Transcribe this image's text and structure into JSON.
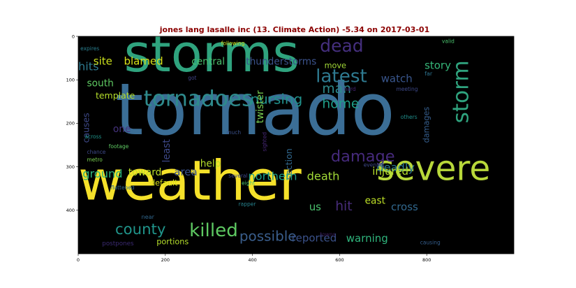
{
  "chart_data": {
    "type": "wordcloud",
    "title": "jones lang lasalle inc (13. Climate Action) -5.34 on 2017-03-01",
    "xlabel": "",
    "ylabel": "",
    "xlim": [
      0,
      1000
    ],
    "ylim": [
      500,
      0
    ],
    "x_ticks": [
      0,
      200,
      400,
      600,
      800
    ],
    "y_ticks": [
      0,
      100,
      200,
      300,
      400
    ],
    "background": "#000000",
    "grid": false,
    "words": [
      {
        "text": "tornado",
        "x": 85,
        "y": 225,
        "size": 165,
        "color": "#3b6e96"
      },
      {
        "text": "storms",
        "x": 105,
        "y": 80,
        "size": 118,
        "color": "#2fa37e"
      },
      {
        "text": "weather",
        "x": 0,
        "y": 375,
        "size": 125,
        "color": "#f5e12a"
      },
      {
        "text": "severe",
        "x": 685,
        "y": 330,
        "size": 78,
        "color": "#b8d83a"
      },
      {
        "text": "tornadoes",
        "x": 150,
        "y": 160,
        "size": 50,
        "color": "#2e8a8c"
      },
      {
        "text": "latest",
        "x": 545,
        "y": 105,
        "size": 42,
        "color": "#2e7a90"
      },
      {
        "text": "storm",
        "x": 895,
        "y": 200,
        "size": 50,
        "color": "#2fa37e",
        "rotate": true
      },
      {
        "text": "dead",
        "x": 555,
        "y": 35,
        "size": 40,
        "color": "#452f7e"
      },
      {
        "text": "damage",
        "x": 580,
        "y": 288,
        "size": 36,
        "color": "#462a7c"
      },
      {
        "text": "killed",
        "x": 255,
        "y": 460,
        "size": 42,
        "color": "#5ec962"
      },
      {
        "text": "county",
        "x": 85,
        "y": 455,
        "size": 34,
        "color": "#20958b"
      },
      {
        "text": "nursing",
        "x": 395,
        "y": 155,
        "size": 32,
        "color": "#21918c"
      },
      {
        "text": "home",
        "x": 560,
        "y": 165,
        "size": 30,
        "color": "#1f9e89"
      },
      {
        "text": "man",
        "x": 560,
        "y": 130,
        "size": 30,
        "color": "#2e8a8c"
      },
      {
        "text": "possible",
        "x": 370,
        "y": 470,
        "size": 32,
        "color": "#3a5e8c"
      },
      {
        "text": "hits",
        "x": 0,
        "y": 78,
        "size": 26,
        "color": "#2e7a90"
      },
      {
        "text": "site",
        "x": 35,
        "y": 65,
        "size": 24,
        "color": "#cde11d"
      },
      {
        "text": "blamed",
        "x": 105,
        "y": 65,
        "size": 24,
        "color": "#d8e219"
      },
      {
        "text": "central",
        "x": 260,
        "y": 65,
        "size": 22,
        "color": "#4ac16d"
      },
      {
        "text": "thunderstorms",
        "x": 385,
        "y": 65,
        "size": 22,
        "color": "#3b528b"
      },
      {
        "text": "story",
        "x": 795,
        "y": 75,
        "size": 24,
        "color": "#35b779"
      },
      {
        "text": "watch",
        "x": 695,
        "y": 105,
        "size": 24,
        "color": "#39568c"
      },
      {
        "text": "south",
        "x": 20,
        "y": 115,
        "size": 22,
        "color": "#5ec962"
      },
      {
        "text": "template",
        "x": 40,
        "y": 143,
        "size": 20,
        "color": "#b5de2b"
      },
      {
        "text": "twister",
        "x": 425,
        "y": 200,
        "size": 22,
        "color": "#7ad151",
        "rotate": true
      },
      {
        "text": "damages",
        "x": 805,
        "y": 245,
        "size": 18,
        "color": "#355e8d",
        "rotate": true
      },
      {
        "text": "causes",
        "x": 25,
        "y": 245,
        "size": 20,
        "color": "#3e4989",
        "rotate": true
      },
      {
        "text": "one",
        "x": 80,
        "y": 220,
        "size": 22,
        "color": "#46337e"
      },
      {
        "text": "least",
        "x": 210,
        "y": 290,
        "size": 22,
        "color": "#3e4989",
        "rotate": true
      },
      {
        "text": "help",
        "x": 280,
        "y": 300,
        "size": 22,
        "color": "#b5de2b"
      },
      {
        "text": "section",
        "x": 490,
        "y": 330,
        "size": 20,
        "color": "#31688e",
        "rotate": true
      },
      {
        "text": "deadly",
        "x": 685,
        "y": 310,
        "size": 26,
        "color": "#2a788e"
      },
      {
        "text": "ground",
        "x": 10,
        "y": 325,
        "size": 26,
        "color": "#2fb47c"
      },
      {
        "text": "toward",
        "x": 115,
        "y": 320,
        "size": 22,
        "color": "#bddf26"
      },
      {
        "text": "area",
        "x": 220,
        "y": 320,
        "size": 24,
        "color": "#3b528b"
      },
      {
        "text": "northern",
        "x": 390,
        "y": 330,
        "size": 26,
        "color": "#1f9e89"
      },
      {
        "text": "death",
        "x": 525,
        "y": 330,
        "size": 26,
        "color": "#a2da37"
      },
      {
        "text": "injured",
        "x": 675,
        "y": 318,
        "size": 24,
        "color": "#b5de2b"
      },
      {
        "text": "default",
        "x": 165,
        "y": 343,
        "size": 18,
        "color": "#d8e219"
      },
      {
        "text": "us",
        "x": 530,
        "y": 400,
        "size": 24,
        "color": "#4ac16d"
      },
      {
        "text": "hit",
        "x": 590,
        "y": 400,
        "size": 30,
        "color": "#472c7a"
      },
      {
        "text": "east",
        "x": 658,
        "y": 385,
        "size": 22,
        "color": "#bddf26"
      },
      {
        "text": "cross",
        "x": 718,
        "y": 400,
        "size": 24,
        "color": "#31688e"
      },
      {
        "text": "reported",
        "x": 490,
        "y": 472,
        "size": 24,
        "color": "#3b528b"
      },
      {
        "text": "warning",
        "x": 615,
        "y": 473,
        "size": 24,
        "color": "#2fb47c"
      },
      {
        "text": "portions",
        "x": 180,
        "y": 478,
        "size": 18,
        "color": "#b5de2b"
      },
      {
        "text": "postpones",
        "x": 55,
        "y": 481,
        "size": 14,
        "color": "#3b2a72"
      },
      {
        "text": "causing",
        "x": 785,
        "y": 478,
        "size": 12,
        "color": "#355e8d"
      },
      {
        "text": "move",
        "x": 565,
        "y": 73,
        "size": 18,
        "color": "#a2da37"
      },
      {
        "text": "expires",
        "x": 5,
        "y": 32,
        "size": 12,
        "color": "#2a7e8e"
      },
      {
        "text": "following",
        "x": 328,
        "y": 20,
        "size": 12,
        "color": "#cde11d"
      },
      {
        "text": "valid",
        "x": 835,
        "y": 15,
        "size": 12,
        "color": "#4ac16d"
      },
      {
        "text": "far",
        "x": 795,
        "y": 90,
        "size": 13,
        "color": "#2c728e"
      },
      {
        "text": "got",
        "x": 252,
        "y": 100,
        "size": 12,
        "color": "#414487"
      },
      {
        "text": "hard",
        "x": 610,
        "y": 125,
        "size": 12,
        "color": "#482475"
      },
      {
        "text": "meeting",
        "x": 730,
        "y": 125,
        "size": 12,
        "color": "#3e4989"
      },
      {
        "text": "others",
        "x": 740,
        "y": 190,
        "size": 12,
        "color": "#20908d"
      },
      {
        "text": "across",
        "x": 15,
        "y": 235,
        "size": 12,
        "color": "#20958b"
      },
      {
        "text": "much",
        "x": 340,
        "y": 225,
        "size": 12,
        "color": "#3b528b"
      },
      {
        "text": "footage",
        "x": 70,
        "y": 257,
        "size": 12,
        "color": "#5ec962"
      },
      {
        "text": "chance",
        "x": 20,
        "y": 270,
        "size": 12,
        "color": "#3e4989"
      },
      {
        "text": "metro",
        "x": 20,
        "y": 288,
        "size": 12,
        "color": "#7ad151"
      },
      {
        "text": "several",
        "x": 345,
        "y": 325,
        "size": 12,
        "color": "#3e4989"
      },
      {
        "text": "sighted",
        "x": 432,
        "y": 265,
        "size": 12,
        "color": "#482878",
        "rotate": true
      },
      {
        "text": "evening",
        "x": 655,
        "y": 300,
        "size": 12,
        "color": "#3e4989"
      },
      {
        "text": "eight",
        "x": 375,
        "y": 342,
        "size": 12,
        "color": "#4ac16d"
      },
      {
        "text": "flattened",
        "x": 75,
        "y": 352,
        "size": 12,
        "color": "#31688e"
      },
      {
        "text": "rapper",
        "x": 368,
        "y": 390,
        "size": 12,
        "color": "#26828e"
      },
      {
        "text": "near",
        "x": 145,
        "y": 420,
        "size": 13,
        "color": "#31688e"
      },
      {
        "text": "towns",
        "x": 555,
        "y": 460,
        "size": 12,
        "color": "#3b1c5a"
      }
    ]
  }
}
